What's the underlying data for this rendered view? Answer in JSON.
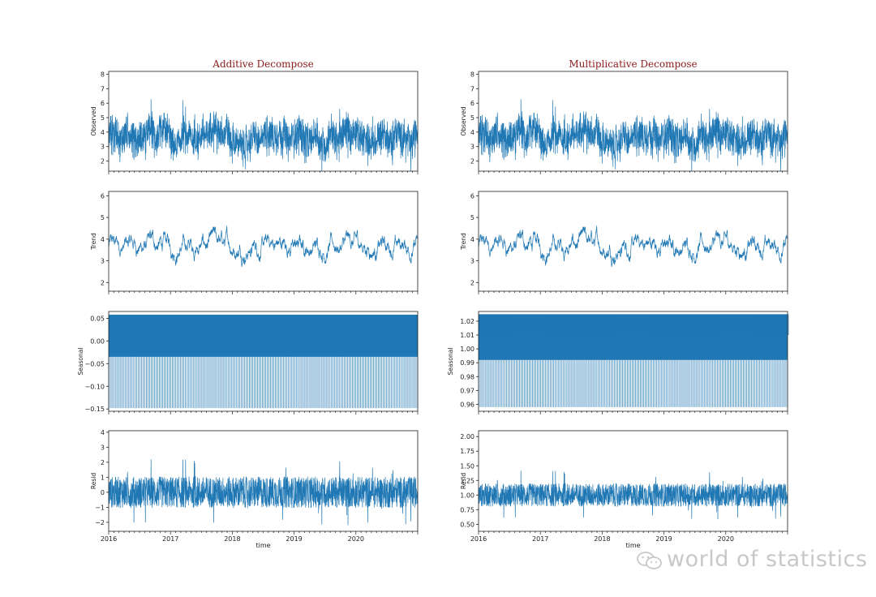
{
  "watermark": {
    "text": "world of statistics"
  },
  "chart_data": [
    {
      "type": "line",
      "title": "Additive Decompose",
      "xlabel": "",
      "ylabel": "Observed",
      "yticks": [
        2,
        3,
        4,
        5,
        6,
        7,
        8
      ],
      "ylim": [
        1.3,
        8.2
      ],
      "x_range": [
        "2016-01-01",
        "2020-12-31"
      ],
      "series": [
        {
          "values_summary": {
            "level": 3.6,
            "min": 1.5,
            "max": 8.0,
            "spikes": 7.6
          }
        }
      ]
    },
    {
      "type": "line",
      "title": "",
      "xlabel": "",
      "ylabel": "Trend",
      "yticks": [
        2,
        3,
        4,
        5,
        6
      ],
      "ylim": [
        1.6,
        6.2
      ],
      "x_range": [
        "2016-01-01",
        "2020-12-31"
      ],
      "series": [
        {
          "values_summary": {
            "level": 3.7,
            "min": 1.9,
            "max": 6.1
          }
        }
      ]
    },
    {
      "type": "area",
      "title": "",
      "xlabel": "",
      "ylabel": "Seasonal",
      "yticks": [
        -0.15,
        -0.1,
        -0.05,
        0.0,
        0.05
      ],
      "ytick_labels": [
        "−0.15",
        "−0.10",
        "−0.05",
        "0.00",
        "0.05"
      ],
      "ylim": [
        -0.155,
        0.065
      ],
      "x_range": [
        "2016-01-01",
        "2020-12-31"
      ],
      "series": [
        {
          "values_summary": {
            "max": 0.058,
            "min": -0.148,
            "dense_min": -0.035
          }
        }
      ]
    },
    {
      "type": "line",
      "title": "",
      "xlabel": "time",
      "ylabel": "Resid",
      "yticks": [
        -2,
        -1,
        0,
        1,
        2,
        3,
        4
      ],
      "ytick_labels": [
        "−2",
        "−1",
        "0",
        "1",
        "2",
        "3",
        "4"
      ],
      "ylim": [
        -2.6,
        4.1
      ],
      "x_range": [
        "2016-01-01",
        "2020-12-31"
      ],
      "xtick_labels": [
        "2016",
        "2017",
        "2018",
        "2019",
        "2020"
      ],
      "series": [
        {
          "values_summary": {
            "level": 0,
            "min": -2.4,
            "max": 3.8
          }
        }
      ]
    },
    {
      "type": "line",
      "title": "Multiplicative Decompose",
      "xlabel": "",
      "ylabel": "Observed",
      "yticks": [
        2,
        3,
        4,
        5,
        6,
        7,
        8
      ],
      "ylim": [
        1.3,
        8.2
      ],
      "x_range": [
        "2016-01-01",
        "2020-12-31"
      ],
      "series": [
        {
          "values_summary": {
            "level": 3.6,
            "min": 1.5,
            "max": 8.0
          }
        }
      ]
    },
    {
      "type": "line",
      "title": "",
      "xlabel": "",
      "ylabel": "Trend",
      "yticks": [
        2,
        3,
        4,
        5,
        6
      ],
      "ylim": [
        1.6,
        6.2
      ],
      "x_range": [
        "2016-01-01",
        "2020-12-31"
      ],
      "series": [
        {
          "values_summary": {
            "level": 3.7,
            "min": 1.9,
            "max": 6.1
          }
        }
      ]
    },
    {
      "type": "area",
      "title": "",
      "xlabel": "",
      "ylabel": "Seasonal",
      "yticks": [
        0.96,
        0.97,
        0.98,
        0.99,
        1.0,
        1.01,
        1.02
      ],
      "ytick_labels": [
        "0.96",
        "0.97",
        "0.98",
        "0.99",
        "1.00",
        "1.01",
        "1.02"
      ],
      "ylim": [
        0.955,
        1.027
      ],
      "x_range": [
        "2016-01-01",
        "2020-12-31"
      ],
      "series": [
        {
          "values_summary": {
            "max": 1.025,
            "min": 0.958,
            "dense_max": 1.01,
            "dense_min": 0.992
          }
        }
      ]
    },
    {
      "type": "line",
      "title": "",
      "xlabel": "time",
      "ylabel": "Resid",
      "yticks": [
        0.5,
        0.75,
        1.0,
        1.25,
        1.5,
        1.75,
        2.0
      ],
      "ytick_labels": [
        "0.50",
        "0.75",
        "1.00",
        "1.25",
        "1.50",
        "1.75",
        "2.00"
      ],
      "ylim": [
        0.38,
        2.1
      ],
      "x_range": [
        "2016-01-01",
        "2020-12-31"
      ],
      "xtick_labels": [
        "2016",
        "2017",
        "2018",
        "2019",
        "2020"
      ],
      "series": [
        {
          "values_summary": {
            "level": 1.0,
            "min": 0.45,
            "max": 2.05
          }
        }
      ]
    }
  ]
}
